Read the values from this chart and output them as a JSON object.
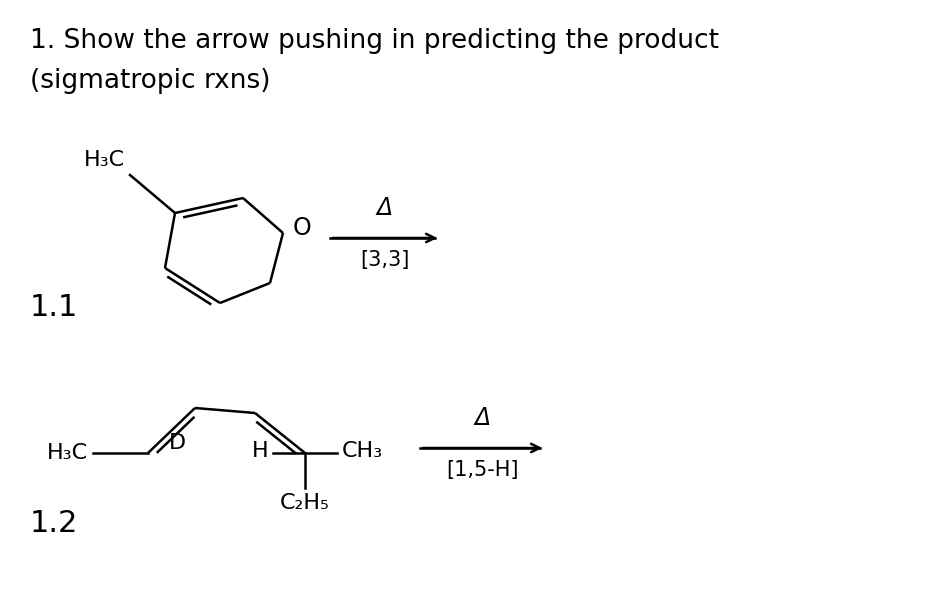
{
  "title_line1": "1. Show the arrow pushing in predicting the product",
  "title_line2": "(sigmatropic rxns)",
  "label_11": "1.1",
  "label_12": "1.2",
  "bg_color": "#ffffff",
  "text_color": "#000000",
  "title_fontsize": 19,
  "label_fontsize": 22,
  "mol_fontsize": 15,
  "lw": 1.8
}
